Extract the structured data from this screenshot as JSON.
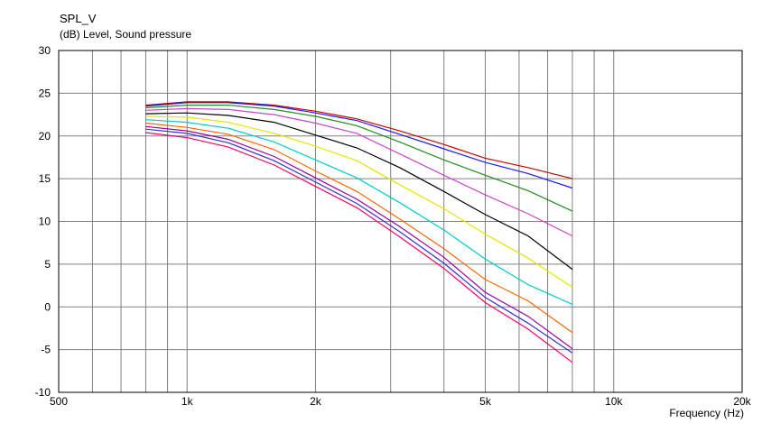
{
  "chart_data": {
    "type": "line",
    "title": "SPL_V",
    "subtitle": "(dB)  Level, Sound pressure",
    "xlabel": "Frequency  (Hz)",
    "x_scale": "log",
    "xlim": [
      500,
      20000
    ],
    "ylim": [
      -10,
      30
    ],
    "grid": true,
    "x_ticks": [
      500,
      1000,
      2000,
      5000,
      10000,
      20000
    ],
    "x_tick_labels": [
      "500",
      "1k",
      "2k",
      "5k",
      "10k",
      "20k"
    ],
    "y_ticks": [
      -10,
      -5,
      0,
      5,
      10,
      15,
      20,
      25,
      30
    ],
    "y_tick_labels": [
      "-10",
      "-5",
      "0",
      "5",
      "10",
      "15",
      "20",
      "25",
      "30"
    ],
    "x": [
      800,
      1000,
      1250,
      1600,
      2000,
      2500,
      3150,
      4000,
      5000,
      6300,
      8000
    ],
    "series": [
      {
        "color": "#cc0000",
        "values": [
          23.6,
          24.0,
          24.0,
          23.6,
          22.9,
          22.0,
          20.6,
          19.0,
          17.4,
          16.3,
          15.0
        ]
      },
      {
        "color": "#1a1aff",
        "values": [
          23.5,
          23.9,
          23.9,
          23.5,
          22.7,
          21.8,
          20.2,
          18.5,
          16.9,
          15.6,
          13.9
        ]
      },
      {
        "color": "#228b22",
        "values": [
          23.3,
          23.6,
          23.6,
          23.1,
          22.3,
          21.2,
          19.3,
          17.2,
          15.4,
          13.6,
          11.2
        ]
      },
      {
        "color": "#cc44cc",
        "values": [
          23.0,
          23.2,
          23.1,
          22.5,
          21.5,
          20.3,
          17.9,
          15.4,
          13.1,
          10.9,
          8.3
        ]
      },
      {
        "color": "#000000",
        "values": [
          22.6,
          22.7,
          22.4,
          21.6,
          20.1,
          18.6,
          16.3,
          13.5,
          10.8,
          8.3,
          4.4
        ]
      },
      {
        "color": "#e6e600",
        "values": [
          22.3,
          22.2,
          21.6,
          20.3,
          18.8,
          17.1,
          14.3,
          11.5,
          8.5,
          5.7,
          2.3
        ]
      },
      {
        "color": "#00cccc",
        "values": [
          21.9,
          21.6,
          20.9,
          19.3,
          17.2,
          15.1,
          12.2,
          9.0,
          5.6,
          2.6,
          0.3
        ]
      },
      {
        "color": "#ff6600",
        "values": [
          21.5,
          21.0,
          20.2,
          18.4,
          15.9,
          13.5,
          10.3,
          6.8,
          3.2,
          0.7,
          -3.0
        ]
      },
      {
        "color": "#990099",
        "values": [
          21.1,
          20.6,
          19.6,
          17.6,
          15.1,
          12.6,
          9.4,
          5.8,
          1.7,
          -1.1,
          -4.9
        ]
      },
      {
        "color": "#3333cc",
        "values": [
          20.8,
          20.3,
          19.2,
          17.1,
          14.6,
          12.1,
          8.8,
          5.1,
          1.1,
          -1.9,
          -5.4
        ]
      },
      {
        "color": "#ff0066",
        "values": [
          20.4,
          19.8,
          18.7,
          16.6,
          14.1,
          11.6,
          8.2,
          4.5,
          0.5,
          -2.6,
          -6.5
        ]
      }
    ]
  }
}
